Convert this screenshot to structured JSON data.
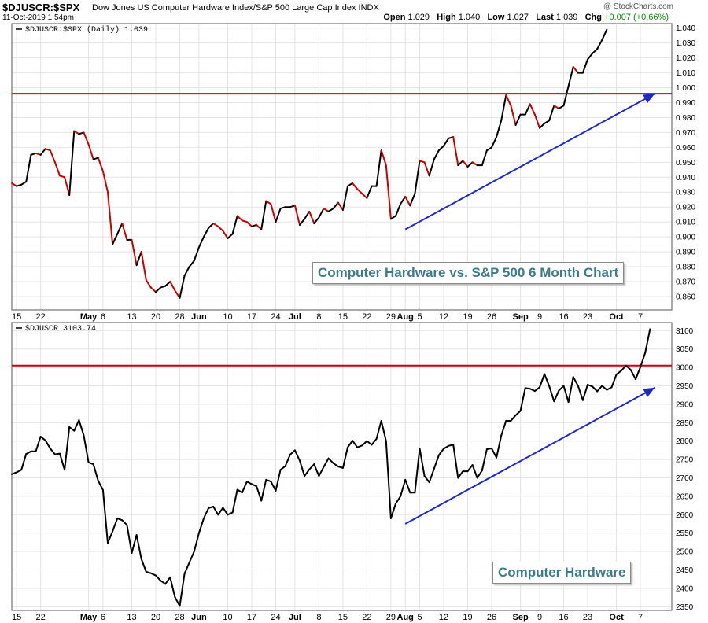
{
  "header": {
    "symbol": "$DJUSCR:$SPX",
    "description": "Dow Jones US Computer Hardware Index/S&P 500 Large Cap Index  INDX",
    "date": "11-Oct-2019 1:54pm",
    "brand": "@ StockCharts.com",
    "open_label": "Open",
    "open": "1.029",
    "high_label": "High",
    "high": "1.040",
    "low_label": "Low",
    "low": "1.027",
    "last_label": "Last",
    "last": "1.039",
    "chg_label": "Chg",
    "chg": "+0.007 (+0.66%)",
    "chg_color": "#0a8a0a"
  },
  "colors": {
    "up": "#000000",
    "down": "#cc0000",
    "resistance": "#cc0000",
    "support_green": "#008800",
    "trendline": "#1f27c8"
  },
  "chart_data": [
    {
      "type": "line",
      "legend": "$DJUSCR:$SPX (Daily) 1.039",
      "annotation": "Computer Hardware vs. S&P 500 6 Month Chart",
      "ylim": [
        0.851,
        1.043
      ],
      "yticks": [
        0.86,
        0.87,
        0.88,
        0.89,
        0.9,
        0.91,
        0.92,
        0.93,
        0.94,
        0.95,
        0.96,
        0.97,
        0.98,
        0.99,
        1.0,
        1.01,
        1.02,
        1.03,
        1.04
      ],
      "grid": true,
      "x_tick_labels": [
        {
          "i": 1,
          "label": "15"
        },
        {
          "i": 6,
          "label": "22"
        },
        {
          "i": 16,
          "label": "May"
        },
        {
          "i": 19,
          "label": "6"
        },
        {
          "i": 25,
          "label": "13"
        },
        {
          "i": 30,
          "label": "20"
        },
        {
          "i": 35,
          "label": "28"
        },
        {
          "i": 39,
          "label": "Jun"
        },
        {
          "i": 45,
          "label": "10"
        },
        {
          "i": 50,
          "label": "17"
        },
        {
          "i": 55,
          "label": "24"
        },
        {
          "i": 59,
          "label": "Jul"
        },
        {
          "i": 64,
          "label": "8"
        },
        {
          "i": 69,
          "label": "15"
        },
        {
          "i": 74,
          "label": "22"
        },
        {
          "i": 79,
          "label": "29"
        },
        {
          "i": 82,
          "label": "Aug"
        },
        {
          "i": 85,
          "label": "5"
        },
        {
          "i": 90,
          "label": "12"
        },
        {
          "i": 95,
          "label": "19"
        },
        {
          "i": 100,
          "label": "26"
        },
        {
          "i": 106,
          "label": "Sep"
        },
        {
          "i": 110,
          "label": "9"
        },
        {
          "i": 115,
          "label": "16"
        },
        {
          "i": 120,
          "label": "23"
        },
        {
          "i": 126,
          "label": "Oct"
        },
        {
          "i": 131,
          "label": "7"
        }
      ],
      "values": [
        0.936,
        0.934,
        0.935,
        0.937,
        0.955,
        0.956,
        0.955,
        0.959,
        0.958,
        0.95,
        0.941,
        0.94,
        0.928,
        0.971,
        0.969,
        0.97,
        0.962,
        0.952,
        0.953,
        0.944,
        0.93,
        0.895,
        0.902,
        0.909,
        0.898,
        0.898,
        0.881,
        0.89,
        0.871,
        0.866,
        0.863,
        0.866,
        0.867,
        0.87,
        0.864,
        0.859,
        0.874,
        0.88,
        0.884,
        0.893,
        0.9,
        0.906,
        0.909,
        0.907,
        0.904,
        0.899,
        0.902,
        0.914,
        0.911,
        0.91,
        0.907,
        0.908,
        0.905,
        0.924,
        0.922,
        0.91,
        0.919,
        0.92,
        0.92,
        0.921,
        0.908,
        0.912,
        0.917,
        0.909,
        0.913,
        0.919,
        0.917,
        0.919,
        0.923,
        0.918,
        0.934,
        0.936,
        0.932,
        0.929,
        0.926,
        0.934,
        0.934,
        0.958,
        0.948,
        0.912,
        0.914,
        0.922,
        0.927,
        0.921,
        0.929,
        0.951,
        0.95,
        0.941,
        0.952,
        0.958,
        0.961,
        0.966,
        0.967,
        0.948,
        0.951,
        0.947,
        0.95,
        0.948,
        0.948,
        0.958,
        0.96,
        0.967,
        0.978,
        0.995,
        0.988,
        0.975,
        0.982,
        0.982,
        0.989,
        0.982,
        0.973,
        0.976,
        0.978,
        0.988,
        0.986,
        0.988,
        1.001,
        1.014,
        1.01,
        1.01,
        1.019,
        1.023,
        1.026,
        1.032,
        1.039
      ],
      "resistance": 0.996,
      "green_segment": {
        "from_i": 114,
        "to_i": 121,
        "value": 0.996
      },
      "trendline": {
        "from": {
          "i": 82,
          "value": 0.905
        },
        "to": {
          "i": 134,
          "value": 0.996
        }
      }
    },
    {
      "type": "line",
      "legend": "$DJUSCR 3103.74",
      "annotation": "Computer Hardware",
      "ylim": [
        2340,
        3122
      ],
      "yticks": [
        2350,
        2400,
        2450,
        2500,
        2550,
        2600,
        2650,
        2700,
        2750,
        2800,
        2850,
        2900,
        2950,
        3000,
        3050,
        3100
      ],
      "grid": true,
      "values": [
        2710,
        2715,
        2722,
        2765,
        2772,
        2772,
        2812,
        2802,
        2780,
        2764,
        2766,
        2722,
        2838,
        2828,
        2857,
        2815,
        2742,
        2737,
        2692,
        2667,
        2523,
        2555,
        2590,
        2585,
        2572,
        2496,
        2545,
        2480,
        2445,
        2441,
        2435,
        2421,
        2412,
        2430,
        2376,
        2352,
        2440,
        2470,
        2500,
        2550,
        2590,
        2618,
        2622,
        2600,
        2619,
        2600,
        2606,
        2668,
        2660,
        2690,
        2683,
        2677,
        2638,
        2695,
        2690,
        2665,
        2722,
        2732,
        2763,
        2775,
        2747,
        2705,
        2723,
        2737,
        2705,
        2730,
        2753,
        2740,
        2731,
        2727,
        2783,
        2801,
        2783,
        2788,
        2800,
        2790,
        2806,
        2855,
        2800,
        2590,
        2630,
        2650,
        2695,
        2660,
        2660,
        2780,
        2705,
        2688,
        2725,
        2762,
        2779,
        2787,
        2790,
        2700,
        2718,
        2718,
        2735,
        2700,
        2720,
        2778,
        2780,
        2755,
        2815,
        2855,
        2855,
        2870,
        2882,
        2944,
        2942,
        2936,
        2946,
        2982,
        2949,
        2908,
        2937,
        2950,
        2906,
        2974,
        2950,
        2911,
        2953,
        2948,
        2935,
        2950,
        2939,
        2946,
        2981,
        2991,
        3005,
        2993,
        2968,
        3001,
        3040,
        3104
      ],
      "resistance": 3005,
      "trendline": {
        "from": {
          "i": 82,
          "value": 2575
        },
        "to": {
          "i": 134,
          "value": 2945
        }
      }
    }
  ]
}
